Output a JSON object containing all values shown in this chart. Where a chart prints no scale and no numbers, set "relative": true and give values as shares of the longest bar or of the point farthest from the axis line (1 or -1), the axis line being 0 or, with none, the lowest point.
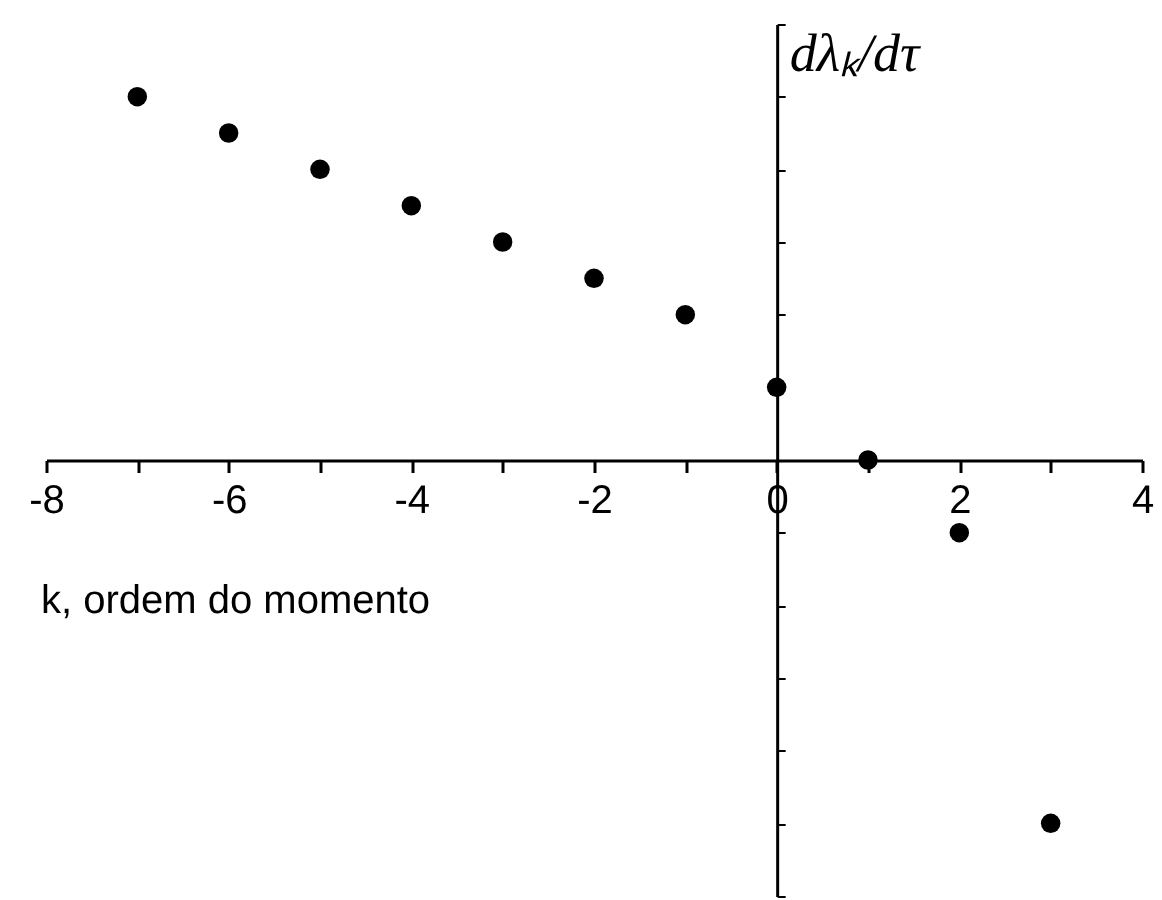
{
  "chart_data": {
    "type": "scatter",
    "xlabel": "k, ordem do momento",
    "ylabel": "dλₖ/dτ",
    "relative": true,
    "marker": "circle",
    "x": [
      -7,
      -6,
      -5,
      -4,
      -3,
      -2,
      -1,
      0,
      1,
      2,
      3
    ],
    "series": [
      {
        "color": "#000000",
        "values": [
          1,
          0.9,
          0.8,
          0.7,
          0.6,
          0.5,
          0.4,
          0.2,
          0,
          -0.2,
          -1
        ]
      }
    ],
    "xlim": [
      -8,
      4
    ],
    "xticks": [
      -8,
      {
        "value": -7,
        "label": null
      },
      -6,
      {
        "value": -5,
        "label": null
      },
      -4,
      {
        "value": -3,
        "label": null
      },
      -2,
      {
        "value": -1,
        "label": null
      },
      0,
      {
        "value": 1,
        "label": null
      },
      2,
      {
        "value": 3,
        "label": null
      },
      4
    ]
  }
}
